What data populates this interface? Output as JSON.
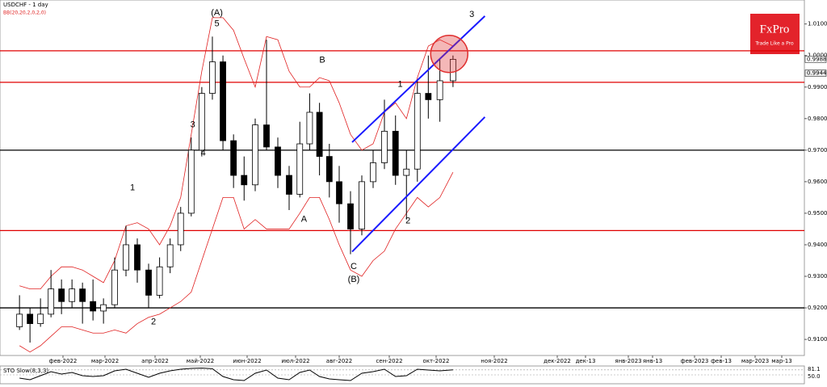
{
  "chart_data": {
    "type": "candlestick",
    "title": "USDCHF - 1 day",
    "indicator_label": "BB(20,20,2,0,2,0)",
    "logo": {
      "name": "FxPro",
      "tagline": "Trade Like a Pro"
    },
    "x": [
      "2022-01-03",
      "2022-01-10",
      "2022-01-17",
      "2022-01-24",
      "2022-01-31",
      "2022-02-07",
      "2022-02-14",
      "2022-02-21",
      "2022-02-28",
      "2022-03-07",
      "2022-03-14",
      "2022-03-21",
      "2022-03-28",
      "2022-04-04",
      "2022-04-11",
      "2022-04-18",
      "2022-04-25",
      "2022-05-02",
      "2022-05-09",
      "2022-05-16",
      "2022-05-23",
      "2022-05-30",
      "2022-06-06",
      "2022-06-13",
      "2022-06-20",
      "2022-06-27",
      "2022-07-04",
      "2022-07-11",
      "2022-07-18",
      "2022-07-25",
      "2022-08-01",
      "2022-08-08",
      "2022-08-15",
      "2022-08-22",
      "2022-08-29",
      "2022-09-05",
      "2022-09-12",
      "2022-09-19",
      "2022-09-26",
      "2022-10-03",
      "2022-10-10"
    ],
    "open": [
      0.914,
      0.918,
      0.915,
      0.918,
      0.926,
      0.922,
      0.926,
      0.922,
      0.919,
      0.921,
      0.932,
      0.94,
      0.932,
      0.924,
      0.933,
      0.94,
      0.95,
      0.97,
      0.988,
      0.998,
      0.973,
      0.962,
      0.959,
      0.978,
      0.971,
      0.962,
      0.956,
      0.972,
      0.982,
      0.968,
      0.96,
      0.953,
      0.945,
      0.96,
      0.966,
      0.976,
      0.962,
      0.964,
      0.988,
      0.986,
      0.992
    ],
    "high": [
      0.924,
      0.92,
      0.923,
      0.932,
      0.929,
      0.929,
      0.928,
      0.929,
      0.923,
      0.936,
      0.946,
      0.942,
      0.934,
      0.936,
      0.942,
      0.952,
      0.974,
      0.99,
      1.006,
      1.0,
      0.975,
      0.968,
      0.98,
      1.005,
      0.974,
      0.965,
      0.979,
      0.988,
      0.985,
      0.972,
      0.965,
      0.957,
      0.962,
      0.97,
      0.986,
      0.981,
      0.97,
      0.992,
      1.0,
      0.999,
      1.0
    ],
    "low": [
      0.913,
      0.909,
      0.914,
      0.917,
      0.918,
      0.92,
      0.915,
      0.916,
      0.915,
      0.92,
      0.93,
      0.928,
      0.92,
      0.923,
      0.931,
      0.938,
      0.949,
      0.968,
      0.986,
      0.97,
      0.958,
      0.954,
      0.957,
      0.97,
      0.958,
      0.951,
      0.955,
      0.97,
      0.962,
      0.955,
      0.947,
      0.937,
      0.943,
      0.958,
      0.964,
      0.959,
      0.948,
      0.96,
      0.98,
      0.979,
      0.99
    ],
    "close": [
      0.918,
      0.915,
      0.918,
      0.926,
      0.922,
      0.926,
      0.922,
      0.919,
      0.921,
      0.932,
      0.94,
      0.932,
      0.924,
      0.933,
      0.94,
      0.95,
      0.97,
      0.988,
      0.998,
      0.973,
      0.962,
      0.959,
      0.978,
      0.971,
      0.962,
      0.956,
      0.972,
      0.982,
      0.968,
      0.96,
      0.953,
      0.945,
      0.96,
      0.966,
      0.976,
      0.962,
      0.964,
      0.988,
      0.986,
      0.992,
      0.9988
    ],
    "bollinger_upper": [
      0.927,
      0.926,
      0.926,
      0.93,
      0.933,
      0.933,
      0.932,
      0.93,
      0.928,
      0.935,
      0.946,
      0.947,
      0.945,
      0.94,
      0.946,
      0.955,
      0.975,
      0.995,
      1.012,
      1.012,
      1.008,
      0.999,
      0.99,
      1.006,
      1.005,
      0.995,
      0.99,
      0.99,
      0.993,
      0.992,
      0.985,
      0.975,
      0.97,
      0.972,
      0.982,
      0.985,
      0.98,
      0.993,
      1.003,
      1.005,
      1.003
    ],
    "bollinger_lower": [
      0.908,
      0.906,
      0.908,
      0.911,
      0.914,
      0.914,
      0.913,
      0.912,
      0.912,
      0.913,
      0.912,
      0.915,
      0.917,
      0.918,
      0.92,
      0.922,
      0.925,
      0.935,
      0.945,
      0.955,
      0.955,
      0.945,
      0.948,
      0.945,
      0.945,
      0.945,
      0.95,
      0.955,
      0.955,
      0.948,
      0.94,
      0.932,
      0.93,
      0.935,
      0.938,
      0.945,
      0.95,
      0.955,
      0.952,
      0.955,
      0.963
    ],
    "bollinger_color": "#e02020",
    "ylim": [
      0.9049,
      1.0176
    ],
    "yticks": [
      {
        "value": 0.91,
        "label": "0.9100"
      },
      {
        "value": 0.92,
        "label": "0.9200"
      },
      {
        "value": 0.93,
        "label": "0.9300"
      },
      {
        "value": 0.94,
        "label": "0.9400"
      },
      {
        "value": 0.95,
        "label": "0.9500"
      },
      {
        "value": 0.96,
        "label": "0.9600"
      },
      {
        "value": 0.97,
        "label": "0.9700"
      },
      {
        "value": 0.98,
        "label": "0.9800"
      },
      {
        "value": 0.99,
        "label": "0.9900"
      },
      {
        "value": 1.0,
        "label": "1.0000"
      },
      {
        "value": 1.01,
        "label": "1.0100"
      }
    ],
    "xticks": [
      {
        "value": "2022-02-01",
        "label": "фев-2022"
      },
      {
        "value": "2022-03-01",
        "label": "мар-2022"
      },
      {
        "value": "2022-04-01",
        "label": "апр-2022"
      },
      {
        "value": "2022-05-01",
        "label": "май-2022"
      },
      {
        "value": "2022-06-01",
        "label": "июн-2022"
      },
      {
        "value": "2022-07-01",
        "label": "июл-2022"
      },
      {
        "value": "2022-08-01",
        "label": "авг-2022"
      },
      {
        "value": "2022-09-01",
        "label": "сен-2022"
      },
      {
        "value": "2022-10-01",
        "label": "окт-2022"
      },
      {
        "value": "2022-11-01",
        "label": "ноя-2022"
      },
      {
        "value": "2022-12-01",
        "label": "дек-2022"
      },
      {
        "value": "2022-12-13",
        "label": "дек-13"
      },
      {
        "value": "2023-01-02",
        "label": "янв-2023"
      },
      {
        "value": "2023-01-13",
        "label": "янв-13"
      },
      {
        "value": "2023-02-01",
        "label": "фев-2023"
      },
      {
        "value": "2023-02-13",
        "label": "фев-13"
      },
      {
        "value": "2023-03-01",
        "label": "мар-2023"
      },
      {
        "value": "2023-03-13",
        "label": "мар-13"
      }
    ],
    "price_markers": [
      0.9988,
      0.9944
    ],
    "levels": [
      {
        "value": 1.0015,
        "color": "#e00000"
      },
      {
        "value": 0.9915,
        "color": "#e00000"
      },
      {
        "value": 0.97,
        "color": "#000000"
      },
      {
        "value": 0.9445,
        "color": "#e00000"
      },
      {
        "value": 0.92,
        "color": "#000000"
      }
    ],
    "channel": {
      "color": "#1a1aff",
      "lines": [
        {
          "x": [
            "2022-08-09",
            "2022-10-27"
          ],
          "y": [
            0.9725,
            1.0125
          ]
        },
        {
          "x": [
            "2022-08-09",
            "2022-10-27"
          ],
          "y": [
            0.9378,
            0.9805
          ]
        }
      ]
    },
    "highlight": {
      "x": "2022-10-08",
      "y": 1.0005,
      "color": "#e03030"
    },
    "annotations": [
      {
        "text": "(A)",
        "x": "2022-05-12",
        "y": 1.0135
      },
      {
        "text": "5",
        "x": "2022-05-12",
        "y": 1.01
      },
      {
        "text": "3",
        "x": "2022-04-26",
        "y": 0.978
      },
      {
        "text": "4",
        "x": "2022-05-03",
        "y": 0.969
      },
      {
        "text": "1",
        "x": "2022-03-18",
        "y": 0.958
      },
      {
        "text": "2",
        "x": "2022-03-31",
        "y": 0.9155
      },
      {
        "text": "A",
        "x": "2022-07-07",
        "y": 0.948
      },
      {
        "text": "B",
        "x": "2022-07-20",
        "y": 0.9985
      },
      {
        "text": "C",
        "x": "2022-08-10",
        "y": 0.933
      },
      {
        "text": "(B)",
        "x": "2022-08-10",
        "y": 0.929
      },
      {
        "text": "1",
        "x": "2022-09-08",
        "y": 0.9908
      },
      {
        "text": "2",
        "x": "2022-09-13",
        "y": 0.9475
      },
      {
        "text": "3",
        "x": "2022-10-20",
        "y": 1.013
      }
    ],
    "stochastic": {
      "title": "STO Slow(8,3,3)",
      "color": "#000000",
      "ylim": [
        0,
        100
      ],
      "yticks": [
        81.1,
        {
          "value": 50,
          "label": "50.0"
        }
      ],
      "values": [
        30,
        20,
        45,
        70,
        55,
        65,
        45,
        40,
        45,
        75,
        85,
        60,
        35,
        60,
        75,
        85,
        90,
        92,
        88,
        40,
        20,
        15,
        60,
        80,
        30,
        20,
        65,
        80,
        40,
        25,
        20,
        15,
        60,
        70,
        85,
        40,
        45,
        85,
        80,
        75,
        81.1
      ]
    }
  }
}
